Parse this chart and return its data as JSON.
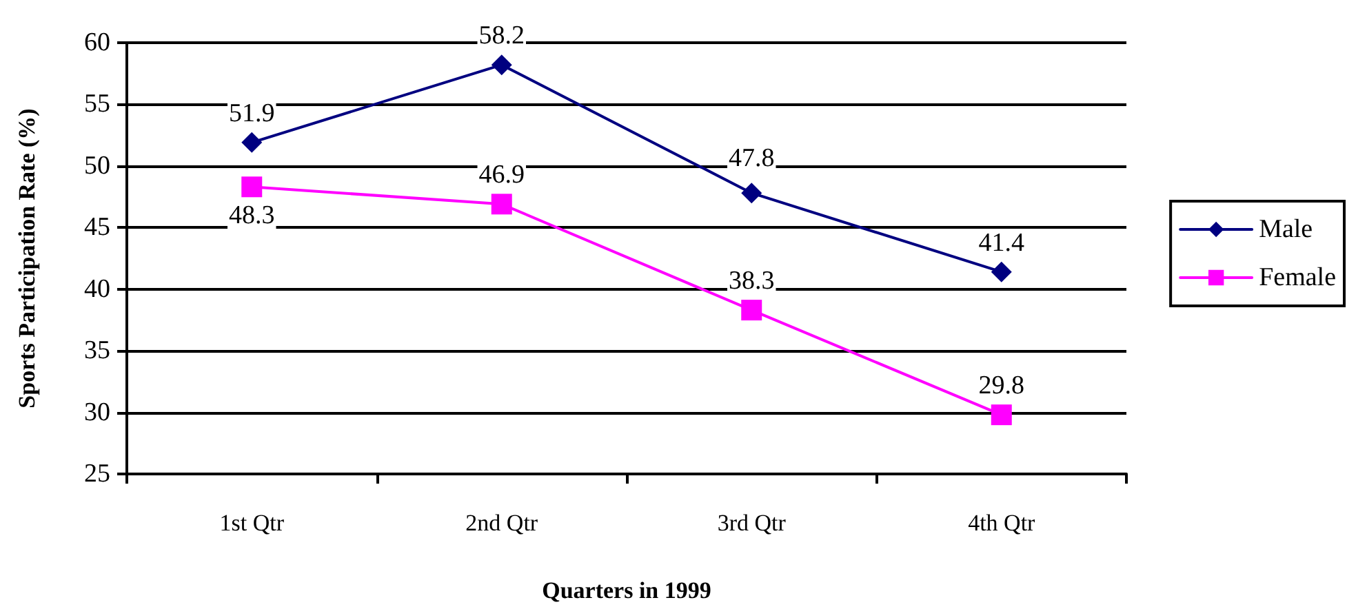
{
  "chart_data": {
    "type": "line",
    "xlabel": "Quarters in 1999",
    "ylabel": "Sports Participation Rate (%)",
    "categories": [
      "1st Qtr",
      "2nd Qtr",
      "3rd Qtr",
      "4th Qtr"
    ],
    "series": [
      {
        "name": "Male",
        "color": "#000080",
        "marker": "diamond",
        "values": [
          51.9,
          58.2,
          47.8,
          41.4
        ]
      },
      {
        "name": "Female",
        "color": "#ff00ff",
        "marker": "square",
        "values": [
          48.3,
          46.9,
          38.3,
          29.8
        ]
      }
    ],
    "ylim": [
      25,
      60
    ],
    "yticks": [
      25,
      30,
      35,
      40,
      45,
      50,
      55,
      60
    ],
    "grid": "y",
    "legend": "right",
    "data_labels": true,
    "line_style": "solid"
  }
}
